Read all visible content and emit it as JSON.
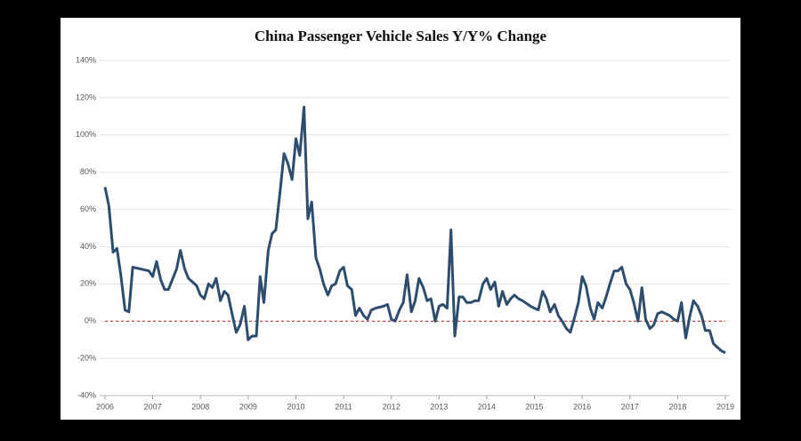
{
  "chart_data": {
    "type": "line",
    "title": "China Passenger Vehicle Sales Y/Y% Change",
    "xlim": [
      2006,
      2019
    ],
    "xticks": [
      2006,
      2007,
      2008,
      2009,
      2010,
      2011,
      2012,
      2013,
      2014,
      2015,
      2016,
      2017,
      2018,
      2019
    ],
    "ylim": [
      -40,
      140
    ],
    "yticks": [
      {
        "value": -40,
        "label": "-40%"
      },
      {
        "value": -20,
        "label": "-20%"
      },
      {
        "value": 0,
        "label": "0%"
      },
      {
        "value": 20,
        "label": "20%"
      },
      {
        "value": 40,
        "label": "40%"
      },
      {
        "value": 60,
        "label": "60%"
      },
      {
        "value": 80,
        "label": "80%"
      },
      {
        "value": 100,
        "label": "100%"
      },
      {
        "value": 120,
        "label": "120%"
      },
      {
        "value": 140,
        "label": "140%"
      }
    ],
    "grid": true,
    "zero_line": {
      "value": 0,
      "color": "#b22222"
    },
    "series": [
      {
        "color": "#2e4d6e",
        "x": [
          2006.0,
          2006.08,
          2006.17,
          2006.25,
          2006.33,
          2006.42,
          2006.5,
          2006.58,
          2006.75,
          2006.92,
          2007.0,
          2007.08,
          2007.17,
          2007.25,
          2007.33,
          2007.5,
          2007.58,
          2007.67,
          2007.75,
          2007.92,
          2008.0,
          2008.08,
          2008.17,
          2008.25,
          2008.33,
          2008.42,
          2008.5,
          2008.58,
          2008.67,
          2008.75,
          2008.83,
          2008.92,
          2009.0,
          2009.08,
          2009.17,
          2009.25,
          2009.33,
          2009.42,
          2009.5,
          2009.58,
          2009.67,
          2009.75,
          2009.83,
          2009.92,
          2010.0,
          2010.08,
          2010.17,
          2010.25,
          2010.33,
          2010.42,
          2010.5,
          2010.58,
          2010.67,
          2010.75,
          2010.83,
          2010.92,
          2011.0,
          2011.08,
          2011.17,
          2011.25,
          2011.33,
          2011.42,
          2011.5,
          2011.58,
          2011.67,
          2011.83,
          2011.92,
          2012.0,
          2012.08,
          2012.17,
          2012.25,
          2012.33,
          2012.42,
          2012.5,
          2012.58,
          2012.67,
          2012.75,
          2012.83,
          2012.92,
          2013.0,
          2013.08,
          2013.17,
          2013.25,
          2013.33,
          2013.42,
          2013.5,
          2013.58,
          2013.67,
          2013.75,
          2013.83,
          2013.92,
          2014.0,
          2014.08,
          2014.17,
          2014.25,
          2014.33,
          2014.42,
          2014.5,
          2014.58,
          2014.67,
          2014.75,
          2014.92,
          2015.0,
          2015.08,
          2015.17,
          2015.25,
          2015.33,
          2015.42,
          2015.5,
          2015.58,
          2015.67,
          2015.75,
          2015.83,
          2015.92,
          2016.0,
          2016.08,
          2016.17,
          2016.25,
          2016.33,
          2016.42,
          2016.5,
          2016.58,
          2016.67,
          2016.75,
          2016.83,
          2016.92,
          2017.0,
          2017.08,
          2017.17,
          2017.25,
          2017.33,
          2017.42,
          2017.5,
          2017.58,
          2017.67,
          2017.75,
          2017.83,
          2017.92,
          2018.0,
          2018.08,
          2018.17,
          2018.25,
          2018.33,
          2018.42,
          2018.5,
          2018.58,
          2018.67,
          2018.75,
          2018.83,
          2018.92,
          2019.0
        ],
        "values": [
          72,
          62,
          37,
          39,
          25,
          6,
          5,
          29,
          28,
          27,
          24,
          32,
          22,
          17,
          17,
          28,
          38,
          28,
          23,
          19,
          14,
          12,
          20,
          18,
          23,
          11,
          16,
          14,
          3,
          -6,
          -2,
          8,
          -10,
          -8,
          -8,
          24,
          10,
          38,
          47,
          49,
          70,
          90,
          85,
          76,
          98,
          89,
          115,
          55,
          64,
          34,
          28,
          20,
          14,
          19,
          20,
          27,
          29,
          19,
          17,
          3,
          7,
          3,
          1,
          6,
          7,
          8,
          9,
          1,
          0,
          6,
          10,
          25,
          5,
          11,
          23,
          18,
          11,
          12,
          0,
          8,
          9,
          7,
          49,
          -8,
          13,
          13,
          10,
          10,
          11,
          11,
          20,
          23,
          17,
          21,
          8,
          16,
          9,
          12,
          14,
          12,
          11,
          8,
          7,
          6,
          16,
          12,
          5,
          9,
          3,
          0,
          -4,
          -6,
          1,
          10,
          24,
          19,
          7,
          1,
          10,
          7,
          13,
          20,
          27,
          27,
          29,
          20,
          17,
          10,
          0,
          18,
          1,
          -4,
          -2,
          4,
          5,
          4,
          3,
          1,
          0,
          10,
          -9,
          2,
          11,
          8,
          3,
          -5,
          -5,
          -12,
          -14,
          -16,
          -17
        ]
      }
    ]
  }
}
